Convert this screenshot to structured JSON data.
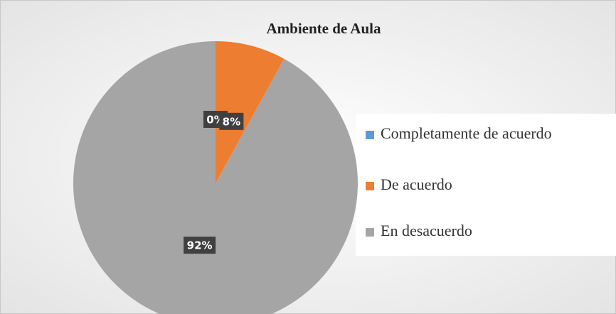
{
  "chart_data": {
    "type": "pie",
    "title": "Ambiente de Aula",
    "categories": [
      "Completamente de acuerdo",
      "De acuerdo",
      "En desacuerdo"
    ],
    "values": [
      0,
      8,
      92
    ],
    "value_labels": [
      "0%",
      "8%",
      "92%"
    ],
    "colors": [
      "#5b9bd5",
      "#ed7d31",
      "#a5a5a5"
    ],
    "legend": "right"
  }
}
